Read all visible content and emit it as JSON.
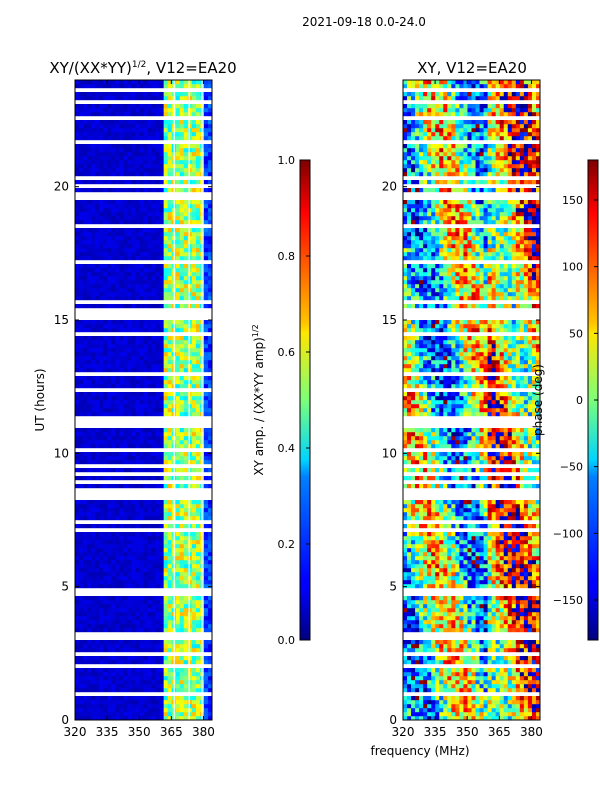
{
  "suptitle": "2021-09-18 0.0-24.0",
  "chart_data": [
    {
      "type": "heatmap",
      "title_main": "XY/(XX*YY)",
      "title_exp": "1/2",
      "title_tail": ", V12=EA20",
      "ylabel": "UT (hours)",
      "xlabel": "",
      "xlim": [
        320,
        384
      ],
      "ylim": [
        0,
        24
      ],
      "xticks": [
        320,
        335,
        350,
        365,
        380
      ],
      "yticks": [
        0,
        5,
        10,
        15,
        20
      ],
      "colormap": "jet",
      "colorbar": {
        "label_main": "XY amp. / (XX*YY amp)",
        "label_exp": "1/2",
        "range": [
          0.0,
          1.0
        ],
        "ticks": [
          "0.0",
          "0.2",
          "0.4",
          "0.6",
          "0.8",
          "1.0"
        ]
      }
    },
    {
      "type": "heatmap",
      "title": "XY, V12=EA20",
      "ylabel": "",
      "xlabel": "frequency (MHz)",
      "xlim": [
        320,
        384
      ],
      "ylim": [
        0,
        24
      ],
      "xticks": [
        320,
        335,
        350,
        365,
        380
      ],
      "yticks": [
        0,
        5,
        10,
        15,
        20
      ],
      "colormap": "jet",
      "colorbar": {
        "label": "phase (deg)",
        "range": [
          -180,
          180
        ],
        "ticks": [
          "−150",
          "−100",
          "−50",
          "0",
          "50",
          "100",
          "150"
        ]
      }
    }
  ],
  "colors": {
    "jet_low": "#00007f",
    "jet_high": "#7f0000",
    "gap": "#ffffff"
  }
}
